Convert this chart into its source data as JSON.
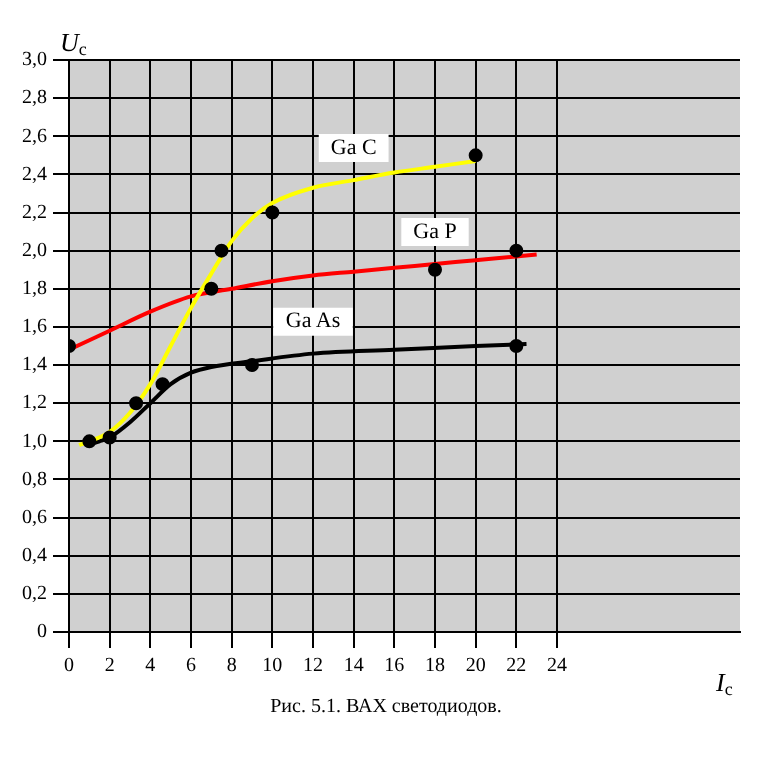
{
  "chart_data": {
    "type": "line",
    "ylabel": "U$_{c}$",
    "xlabel": "I$_{c}$",
    "annotations": [
      "Рис. 5.1. ВАХ светодиодов."
    ],
    "xlim": [
      0,
      33
    ],
    "xticks": [
      0,
      2,
      4,
      6,
      8,
      10,
      12,
      14,
      16,
      18,
      20,
      22,
      24
    ],
    "ylim": [
      0,
      3
    ],
    "yticks": [
      0,
      {
        "value": 0.2,
        "label": "0,2"
      },
      {
        "value": 0.4,
        "label": "0,4"
      },
      {
        "value": 0.6,
        "label": "0,6"
      },
      {
        "value": 0.8,
        "label": "0,8"
      },
      {
        "value": 1,
        "label": "1,0"
      },
      {
        "value": 1.2,
        "label": "1,2"
      },
      {
        "value": 1.4,
        "label": "1,4"
      },
      {
        "value": 1.6,
        "label": "1,6"
      },
      {
        "value": 1.8,
        "label": "1,8"
      },
      {
        "value": 2,
        "label": "2,0"
      },
      {
        "value": 2.2,
        "label": "2,2"
      },
      {
        "value": 2.4,
        "label": "2,4"
      },
      {
        "value": 2.6,
        "label": "2,6"
      },
      {
        "value": 2.8,
        "label": "2,8"
      },
      {
        "value": 3,
        "label": "3,0"
      }
    ],
    "grid": true,
    "legend": false,
    "marker": "none",
    "line_style": "solid",
    "series": [
      {
        "name": "Ga C",
        "color": "#ffff00",
        "x": [
          0.5,
          2,
          3,
          4,
          5,
          6,
          7,
          8,
          9,
          10,
          12,
          14,
          16,
          18,
          20
        ],
        "values": [
          0.98,
          1.05,
          1.15,
          1.3,
          1.5,
          1.7,
          1.88,
          2.05,
          2.17,
          2.25,
          2.33,
          2.37,
          2.41,
          2.44,
          2.47
        ]
      },
      {
        "name": "Ga P",
        "color": "#ff0000",
        "x": [
          0,
          2,
          4,
          6,
          8,
          10,
          12,
          14,
          16,
          18,
          20,
          23
        ],
        "values": [
          1.48,
          1.58,
          1.68,
          1.76,
          1.8,
          1.84,
          1.87,
          1.89,
          1.91,
          1.93,
          1.95,
          1.98
        ]
      },
      {
        "name": "Ga As",
        "color": "#000000",
        "x": [
          0.8,
          1.5,
          2,
          3,
          4,
          5,
          6,
          7,
          9,
          12,
          16,
          20,
          22.5
        ],
        "values": [
          0.98,
          1,
          1.02,
          1.1,
          1.2,
          1.3,
          1.36,
          1.39,
          1.42,
          1.46,
          1.48,
          1.5,
          1.51
        ]
      },
      {
        "type": "scatter",
        "marker": "circle",
        "color": "#000000",
        "x": [
          7.5,
          10,
          20,
          0,
          7,
          18,
          22,
          1,
          2,
          3.3,
          4.6,
          9,
          22
        ],
        "values": [
          2,
          2.2,
          2.5,
          1.5,
          1.8,
          1.9,
          2,
          1,
          1.02,
          1.2,
          1.3,
          1.4,
          1.5
        ]
      }
    ]
  }
}
